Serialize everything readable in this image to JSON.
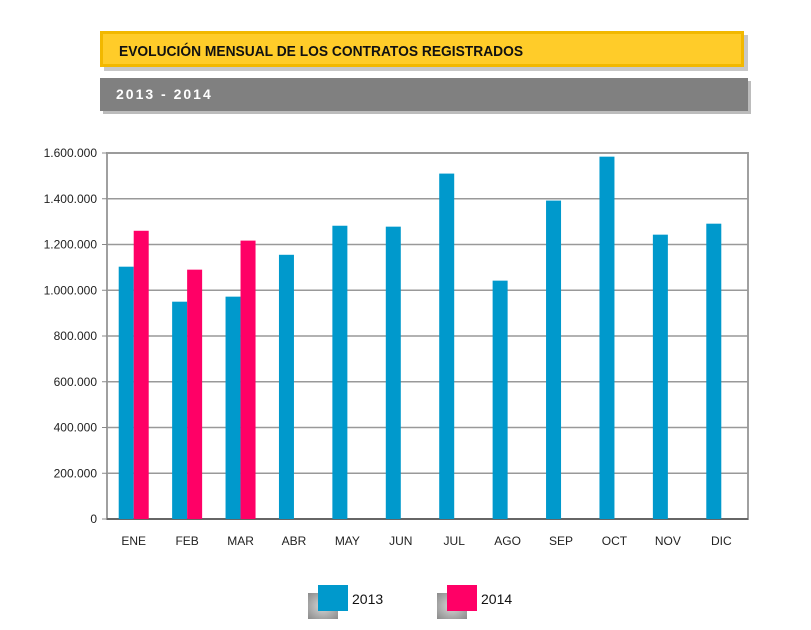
{
  "header": {
    "title": "EVOLUCIÓN MENSUAL DE LOS CONTRATOS REGISTRADOS",
    "subtitle": "2013  -  2014"
  },
  "chart_data": {
    "type": "bar",
    "categories": [
      "ENE",
      "FEB",
      "MAR",
      "ABR",
      "MAY",
      "JUN",
      "JUL",
      "AGO",
      "SEP",
      "OCT",
      "NOV",
      "DIC"
    ],
    "series": [
      {
        "name": "2013",
        "color": "#0099cc",
        "values": [
          1103000,
          950000,
          972000,
          1155000,
          1282000,
          1278000,
          1510000,
          1042000,
          1392000,
          1584000,
          1243000,
          1291000
        ]
      },
      {
        "name": "2014",
        "color": "#ff0066",
        "values": [
          1260000,
          1090000,
          1217000,
          null,
          null,
          null,
          null,
          null,
          null,
          null,
          null,
          null
        ]
      }
    ],
    "ylim": [
      0,
      1600000
    ],
    "yticks": [
      0,
      200000,
      400000,
      600000,
      800000,
      1000000,
      1200000,
      1400000,
      1600000
    ],
    "ytick_labels": [
      "0",
      "200.000",
      "400.000",
      "600.000",
      "800.000",
      "1.000.000",
      "1.200.000",
      "1.400.000",
      "1.600.000"
    ],
    "grid": true,
    "legend": "bottom"
  }
}
